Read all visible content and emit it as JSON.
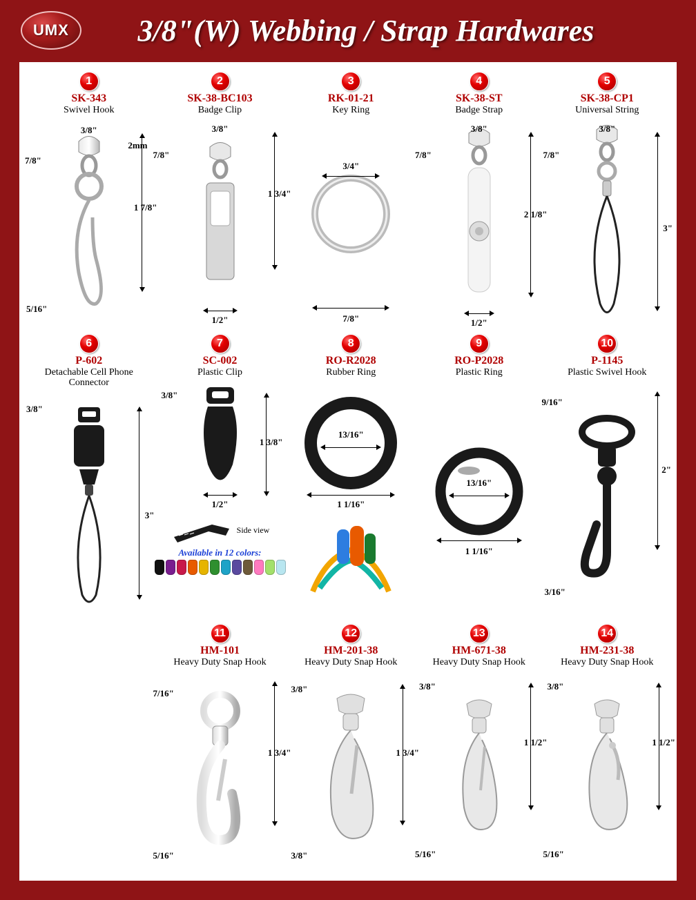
{
  "brand": {
    "logo_text": "UMX"
  },
  "page_title": "3/8\"(W) Webbing / Strap Hardwares",
  "colors": {
    "page_bg": "#8f1416",
    "panel_bg": "#ffffff",
    "sku_color": "#b00000",
    "badge_gradient": [
      "#ff6a6a",
      "#e40000",
      "#a00000"
    ],
    "title_color": "#ffffff",
    "note_color": "#1a3fd6"
  },
  "swatch_colors": [
    "#111111",
    "#7a1d8f",
    "#c8194a",
    "#e85a00",
    "#e6b400",
    "#2f8f2f",
    "#1ea3c7",
    "#5a4a9f",
    "#6e5a3a",
    "#ff7abf",
    "#a3e06a",
    "#b8e6f0"
  ],
  "products": [
    {
      "num": "1",
      "sku": "SK-343",
      "name": "Swivel Hook",
      "dims": {
        "top_w": "3/8\"",
        "side_h": "7/8\"",
        "thick": "2mm",
        "total_h": "1 7/8\"",
        "bottom_w": "5/16\""
      }
    },
    {
      "num": "2",
      "sku": "SK-38-BC103",
      "name": "Badge Clip",
      "dims": {
        "top_w": "3/8\"",
        "side_h": "7/8\"",
        "total_h": "1 3/4\"",
        "bottom_w": "1/2\""
      }
    },
    {
      "num": "3",
      "sku": "RK-01-21",
      "name": "Key Ring",
      "dims": {
        "inner_d": "3/4\"",
        "outer_d": "7/8\""
      }
    },
    {
      "num": "4",
      "sku": "SK-38-ST",
      "name": "Badge Strap",
      "dims": {
        "top_w": "3/8\"",
        "side_h": "7/8\"",
        "total_h": "2 1/8\"",
        "bottom_w": "1/2\""
      }
    },
    {
      "num": "5",
      "sku": "SK-38-CP1",
      "name": "Universal String",
      "dims": {
        "top_w": "3/8\"",
        "side_h": "7/8\"",
        "total_h": "3\""
      }
    },
    {
      "num": "6",
      "sku": "P-602",
      "name": "Detachable Cell Phone Connector",
      "dims": {
        "top_w": "3/8\"",
        "total_h": "3\""
      }
    },
    {
      "num": "7",
      "sku": "SC-002",
      "name": "Plastic Clip",
      "dims": {
        "top_w": "3/8\"",
        "total_h": "1 3/8\"",
        "bottom_w": "1/2\""
      },
      "side_view_label": "Side view",
      "colors_note": "Available in 12 colors:"
    },
    {
      "num": "8",
      "sku": "RO-R2028",
      "name": "Rubber Ring",
      "dims": {
        "inner_d": "13/16\"",
        "outer_d": "1 1/16\""
      }
    },
    {
      "num": "9",
      "sku": "RO-P2028",
      "name": "Plastic Ring",
      "dims": {
        "inner_d": "13/16\"",
        "outer_d": "1 1/16\""
      }
    },
    {
      "num": "10",
      "sku": "P-1145",
      "name": "Plastic Swivel Hook",
      "dims": {
        "top_w": "9/16\"",
        "total_h": "2\"",
        "bottom_w": "3/16\""
      }
    },
    {
      "num": "11",
      "sku": "HM-101",
      "name": "Heavy Duty Snap Hook",
      "dims": {
        "top_w": "7/16\"",
        "total_h": "1 3/4\"",
        "bottom_w": "5/16\""
      }
    },
    {
      "num": "12",
      "sku": "HM-201-38",
      "name": "Heavy Duty Snap Hook",
      "dims": {
        "top_w": "3/8\"",
        "total_h": "1 3/4\"",
        "bottom_w": "3/8\""
      }
    },
    {
      "num": "13",
      "sku": "HM-671-38",
      "name": "Heavy Duty Snap Hook",
      "dims": {
        "top_w": "3/8\"",
        "total_h": "1 1/2\"",
        "bottom_w": "5/16\""
      }
    },
    {
      "num": "14",
      "sku": "HM-231-38",
      "name": "Heavy Duty Snap Hook",
      "dims": {
        "top_w": "3/8\"",
        "total_h": "1 1/2\"",
        "bottom_w": "5/16\""
      }
    }
  ]
}
